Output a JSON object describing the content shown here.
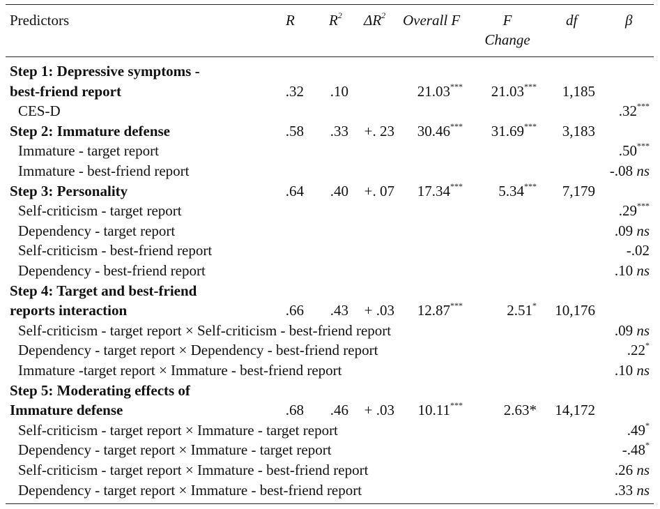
{
  "header": {
    "predictors": "Predictors",
    "R": "R",
    "R2": "R",
    "R2_sup": "2",
    "dR2": "ΔR",
    "dR2_sup": "2",
    "overallF": "Overall F",
    "fchange_1": "F",
    "fchange_2": "Change",
    "df": "df",
    "beta": "β"
  },
  "rows": [
    {
      "label": "Step 1: Depressive symptoms -",
      "bold": true
    },
    {
      "label": "best-friend report",
      "bold": true,
      "R": ".32",
      "R2": ".10",
      "dR2": "",
      "F": "21.03",
      "F_sig": "***",
      "FC": "21.03",
      "FC_sig": "***",
      "df": "1,185"
    },
    {
      "label": "CES-D",
      "beta": ".32",
      "beta_sig": "***"
    },
    {
      "label": "Step 2: Immature defense",
      "bold": true,
      "R": ".58",
      "R2": ".33",
      "dR2": "+. 23",
      "F": "30.46",
      "F_sig": "***",
      "FC": "31.69",
      "FC_sig": "***",
      "df": "3,183"
    },
    {
      "label": "Immature - target report",
      "beta": ".50",
      "beta_sig": "***"
    },
    {
      "label": "Immature - best-friend report",
      "beta": "-.08",
      "beta_ns": "ns"
    },
    {
      "label": "Step 3: Personality",
      "bold": true,
      "R": ".64",
      "R2": ".40",
      "dR2": "+. 07",
      "F": "17.34",
      "F_sig": "***",
      "FC": "5.34",
      "FC_sig": "***",
      "df": "7,179"
    },
    {
      "label": "Self-criticism - target report",
      "beta": ".29",
      "beta_sig": "***"
    },
    {
      "label": "Dependency - target report",
      "beta": ".09",
      "beta_ns": "ns"
    },
    {
      "label": "Self-criticism - best-friend report",
      "beta": "-.02"
    },
    {
      "label": "Dependency - best-friend report",
      "beta": ".10",
      "beta_ns": "ns"
    },
    {
      "label": "Step 4: Target and best-friend",
      "bold": true
    },
    {
      "label": "reports interaction",
      "bold": true,
      "R": ".66",
      "R2": ".43",
      "dR2": "+ .03",
      "F": "12.87",
      "F_sig": "***",
      "FC": "2.51",
      "FC_sig": "*",
      "df": "10,176"
    },
    {
      "label": "Self-criticism - target report × Self-criticism - best-friend report",
      "beta": ".09",
      "beta_ns": "ns"
    },
    {
      "label": "Dependency - target report × Dependency - best-friend report",
      "beta": ".22",
      "beta_sig": "*"
    },
    {
      "label": "Immature -target report × Immature - best-friend report",
      "beta": ".10",
      "beta_ns": "ns"
    },
    {
      "label": "Step 5: Moderating effects of",
      "bold": true
    },
    {
      "label": "Immature defense",
      "bold": true,
      "R": ".68",
      "R2": ".46",
      "dR2": "+ .03",
      "F": "10.11",
      "F_sig": "***",
      "FC": "2.63*",
      "FC_sig": "",
      "df": "14,172"
    },
    {
      "label": "Self-criticism - target report × Immature - target report",
      "beta": ".49",
      "beta_sig": "*"
    },
    {
      "label": "Dependency - target report × Immature - target report",
      "beta": "-.48",
      "beta_sig": "*"
    },
    {
      "label": "Self-criticism - target report × Immature - best-friend report",
      "beta": ".26",
      "beta_ns": "ns"
    },
    {
      "label": "Dependency - target report × Immature - best-friend report",
      "beta": ".33",
      "beta_ns": "ns"
    }
  ]
}
